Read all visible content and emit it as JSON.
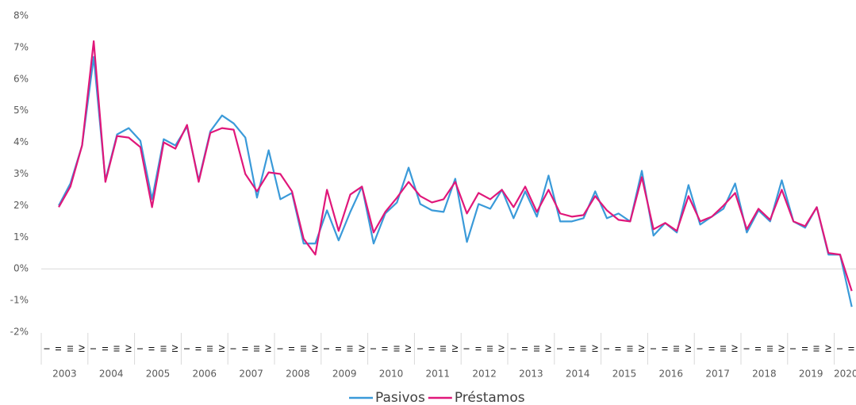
{
  "chart_data": {
    "type": "line",
    "categories": [
      "I",
      "II",
      "III",
      "IV",
      "I",
      "II",
      "III",
      "IV",
      "I",
      "II",
      "III",
      "IV",
      "I",
      "II",
      "III",
      "IV",
      "I",
      "II",
      "III",
      "IV",
      "I",
      "II",
      "III",
      "IV",
      "I",
      "II",
      "III",
      "IV",
      "I",
      "II",
      "III",
      "IV",
      "I",
      "II",
      "III",
      "IV",
      "I",
      "II",
      "III",
      "IV",
      "I",
      "II",
      "III",
      "IV",
      "I",
      "II",
      "III",
      "IV",
      "I",
      "II",
      "III",
      "IV",
      "I",
      "II",
      "III",
      "IV",
      "I",
      "II",
      "III",
      "IV",
      "I",
      "II",
      "III",
      "IV",
      "I",
      "II",
      "III",
      "IV",
      "I",
      "II"
    ],
    "years": [
      "2003",
      "2004",
      "2005",
      "2006",
      "2007",
      "2008",
      "2009",
      "2010",
      "2011",
      "2012",
      "2013",
      "2014",
      "2015",
      "2016",
      "2017",
      "2018",
      "2019",
      "2020"
    ],
    "series": [
      {
        "name": "Pasivos",
        "color": "#3a9ad9",
        "values": [
          null,
          2.0,
          2.7,
          3.9,
          6.7,
          2.8,
          4.25,
          4.45,
          4.05,
          2.2,
          4.1,
          3.9,
          4.5,
          2.8,
          4.35,
          4.85,
          4.6,
          4.15,
          2.25,
          3.75,
          2.2,
          2.4,
          0.8,
          0.8,
          1.85,
          0.9,
          1.8,
          2.6,
          0.8,
          1.75,
          2.1,
          3.2,
          2.05,
          1.85,
          1.8,
          2.85,
          0.85,
          2.05,
          1.9,
          2.5,
          1.6,
          2.45,
          1.65,
          2.95,
          1.5,
          1.5,
          1.6,
          2.45,
          1.6,
          1.75,
          1.5,
          3.1,
          1.05,
          1.45,
          1.15,
          2.65,
          1.4,
          1.65,
          1.9,
          2.7,
          1.15,
          1.85,
          1.5,
          2.8,
          1.5,
          1.3,
          1.95,
          0.45,
          0.45,
          -1.2
        ]
      },
      {
        "name": "Préstamos",
        "color": "#e0177a",
        "values": [
          null,
          1.95,
          2.6,
          3.9,
          7.2,
          2.75,
          4.2,
          4.15,
          3.85,
          1.95,
          4.0,
          3.8,
          4.55,
          2.75,
          4.3,
          4.45,
          4.4,
          3.0,
          2.45,
          3.05,
          3.0,
          2.45,
          0.95,
          0.45,
          2.5,
          1.2,
          2.35,
          2.6,
          1.15,
          1.8,
          2.25,
          2.75,
          2.3,
          2.1,
          2.2,
          2.75,
          1.75,
          2.4,
          2.2,
          2.5,
          1.95,
          2.6,
          1.8,
          2.5,
          1.75,
          1.65,
          1.7,
          2.3,
          1.85,
          1.55,
          1.5,
          2.9,
          1.25,
          1.45,
          1.2,
          2.3,
          1.5,
          1.65,
          2.0,
          2.4,
          1.25,
          1.9,
          1.55,
          2.5,
          1.5,
          1.35,
          1.95,
          0.5,
          0.45,
          -0.7
        ]
      }
    ],
    "ylim": [
      -2,
      8
    ],
    "yticks": [
      {
        "value": -2,
        "label": "-2%"
      },
      {
        "value": -1,
        "label": "-1%"
      },
      {
        "value": 0,
        "label": "0%"
      },
      {
        "value": 1,
        "label": "1%"
      },
      {
        "value": 2,
        "label": "2%"
      },
      {
        "value": 3,
        "label": "3%"
      },
      {
        "value": 4,
        "label": "4%"
      },
      {
        "value": 5,
        "label": "5%"
      },
      {
        "value": 6,
        "label": "6%"
      },
      {
        "value": 7,
        "label": "7%"
      },
      {
        "value": 8,
        "label": "8%"
      }
    ],
    "zero_line": true,
    "legend": "bottom"
  }
}
